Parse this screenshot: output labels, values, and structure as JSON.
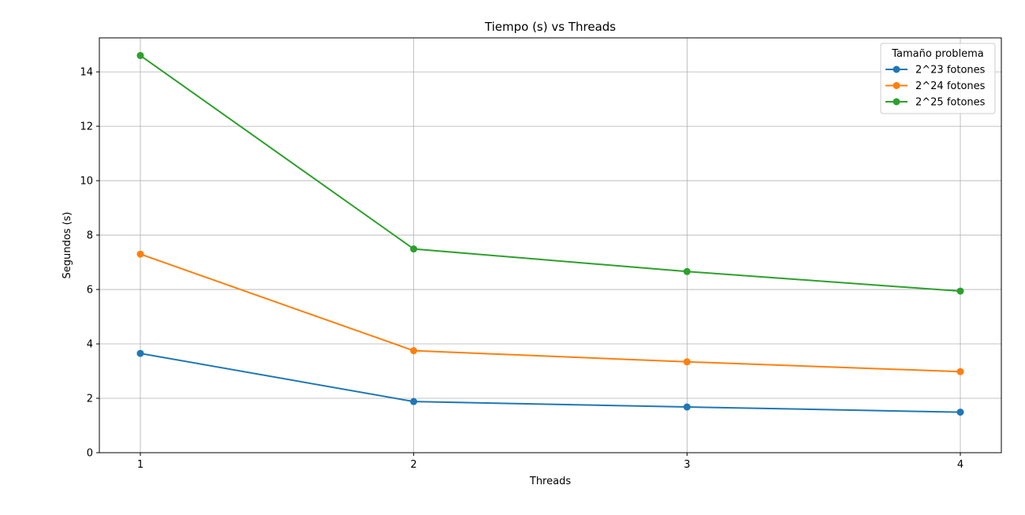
{
  "chart_data": {
    "type": "line",
    "title": "Tiempo (s) vs Threads",
    "xlabel": "Threads",
    "ylabel": "Segundos (s)",
    "x": [
      1,
      2,
      3,
      4
    ],
    "xticks": [
      1,
      2,
      3,
      4
    ],
    "xlim": [
      0.85,
      4.15
    ],
    "yticks": [
      0,
      2,
      4,
      6,
      8,
      10,
      12,
      14
    ],
    "ylim": [
      0,
      15.25
    ],
    "grid": true,
    "legend": {
      "title": "Tamaño problema",
      "position": "top-right"
    },
    "series": [
      {
        "name": "2^23 fotones",
        "color": "#1f77b4",
        "values": [
          3.65,
          1.88,
          1.68,
          1.49
        ]
      },
      {
        "name": "2^24 fotones",
        "color": "#ff7f0e",
        "values": [
          7.3,
          3.75,
          3.34,
          2.98
        ]
      },
      {
        "name": "2^25 fotones",
        "color": "#2ca02c",
        "values": [
          14.6,
          7.49,
          6.66,
          5.94
        ]
      }
    ]
  }
}
